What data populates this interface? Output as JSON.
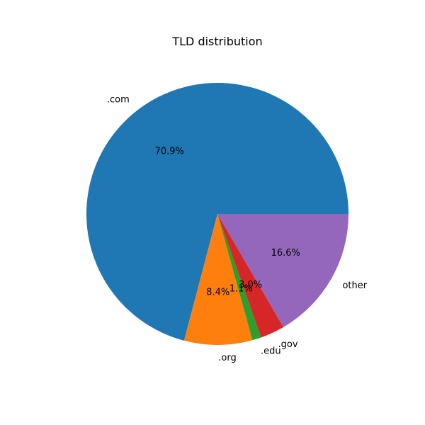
{
  "chart_data": {
    "type": "pie",
    "title": "TLD distribution",
    "labels": [
      ".com",
      ".org",
      ".edu",
      ".gov",
      "other"
    ],
    "values": [
      70.9,
      8.4,
      1.1,
      3.0,
      16.6
    ],
    "value_labels": [
      "70.9%",
      "8.4%",
      "1.1%",
      "3.0%",
      "16.6%"
    ],
    "colors": [
      "#1f77b4",
      "#ff7f0e",
      "#2ca02c",
      "#d62728",
      "#9467bd"
    ],
    "start_angle_deg": 0,
    "direction": "counterclockwise"
  }
}
